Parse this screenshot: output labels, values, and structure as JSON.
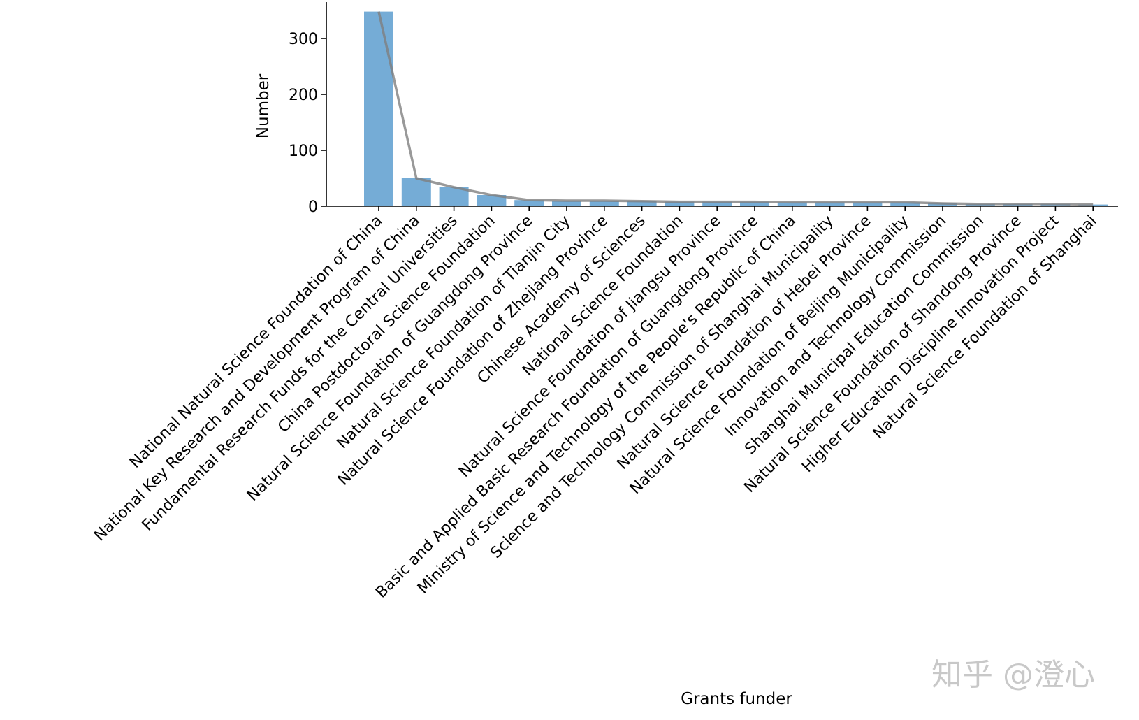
{
  "chart_data": {
    "type": "bar",
    "title": "",
    "xlabel": "Grants funder",
    "ylabel": "Number",
    "ylim": [
      0,
      365
    ],
    "yticks": [
      0,
      100,
      200,
      300
    ],
    "grid": false,
    "categories": [
      "National Natural Science Foundation of China",
      "National Key Research and Development Program of China",
      "Fundamental Research Funds for the Central Universities",
      "China Postdoctoral Science Foundation",
      "Natural Science Foundation of Guangdong Province",
      "Natural Science Foundation of Tianjin City",
      "Natural Science Foundation of Zhejiang Province",
      "Chinese Academy of Sciences",
      "National Science Foundation",
      "Natural Science Foundation of Jiangsu Province",
      "Basic and Applied Basic Research Foundation of Guangdong Province",
      "Ministry of Science and Technology of the People's Republic of China",
      "Science and Technology Commission of Shanghai Municipality",
      "Natural Science Foundation of Hebei Province",
      "Natural Science Foundation of Beijing Municipality",
      "Innovation and Technology Commission",
      "Shanghai Municipal Education Commission",
      "Natural Science Foundation of Shandong Province",
      "Higher Education Discipline Innovation Project",
      "Natural Science Foundation of Shanghai"
    ],
    "values": [
      348,
      50,
      34,
      20,
      11,
      10,
      10,
      9,
      8,
      8,
      8,
      7,
      7,
      7,
      7,
      5,
      4,
      4,
      4,
      3
    ],
    "bar_color": "#75acd6",
    "line_color": "#7f7f7f"
  },
  "watermark": "知乎 @澄心"
}
